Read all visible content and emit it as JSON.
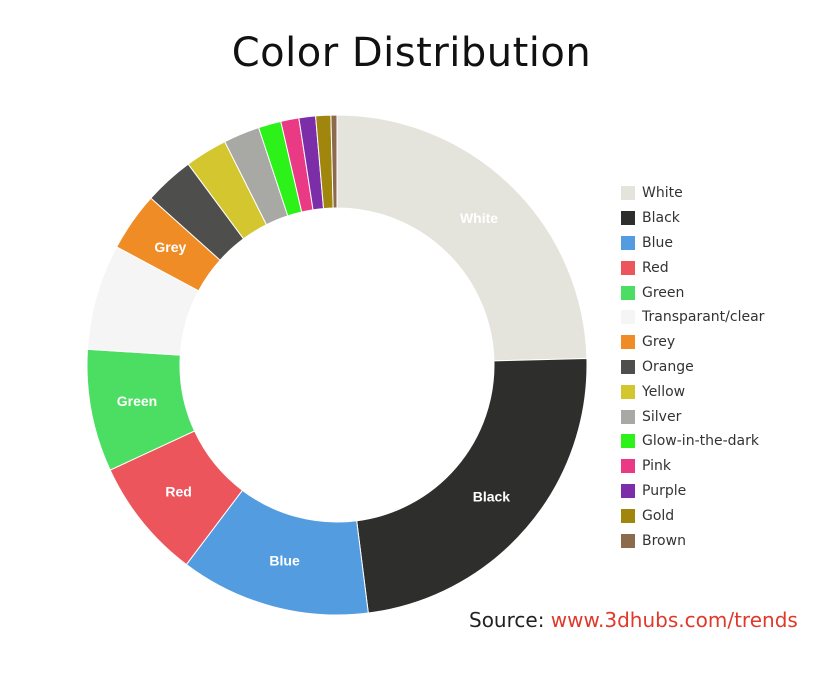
{
  "chart_data": {
    "type": "pie",
    "title": "Color Distribution",
    "categories": [
      "White",
      "Black",
      "Blue",
      "Red",
      "Green",
      "Transparant/clear",
      "Grey",
      "Orange",
      "Yellow",
      "Silver",
      "Glow-in-the-dark",
      "Pink",
      "Purple",
      "Gold",
      "Brown"
    ],
    "values": [
      25.2,
      24.0,
      12.6,
      8.0,
      8.1,
      7.0,
      3.9,
      3.3,
      2.8,
      2.4,
      1.5,
      1.2,
      1.1,
      1.0,
      0.4
    ],
    "colors": [
      "#e5e4dc",
      "#2e2e2c",
      "#549ce0",
      "#ec555b",
      "#4cde62",
      "#f5f5f5",
      "#f08c25",
      "#4e4e4c",
      "#d4c62f",
      "#a8a8a4",
      "#2cf21a",
      "#ea3a86",
      "#7b2ea8",
      "#a1860d",
      "#8c6a4c"
    ],
    "slice_labels": [
      "White",
      "Black",
      "Blue",
      "Red",
      "Green",
      "",
      "Grey",
      "",
      "",
      "",
      "",
      "",
      "",
      "",
      ""
    ],
    "legend_position": "right"
  },
  "source": {
    "prefix": "Source:",
    "link_text": "www.3dhubs.com/trends"
  }
}
